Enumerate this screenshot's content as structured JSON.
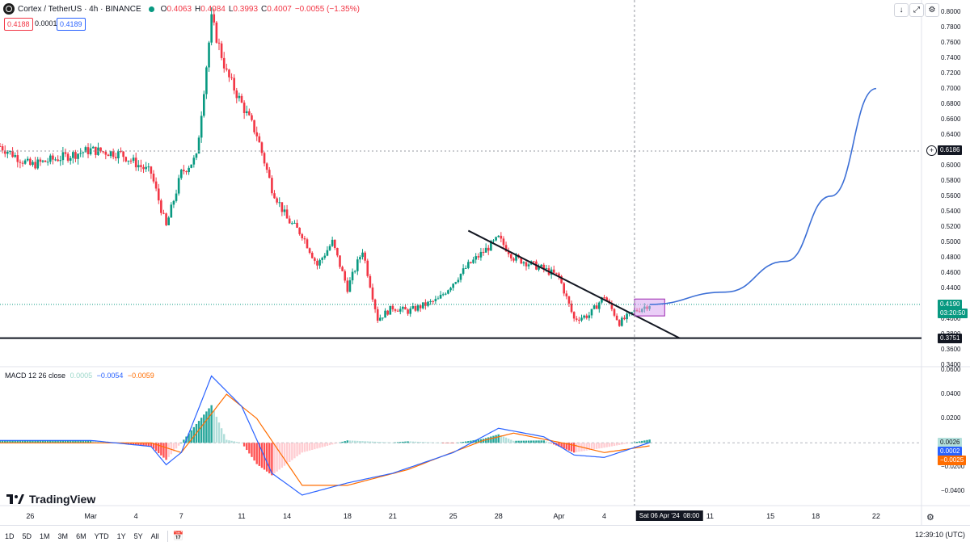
{
  "header": {
    "symbol": "Cortex / TetherUS · 4h · BINANCE",
    "ohlc": {
      "o_label": "O",
      "o": "0.4063",
      "h_label": "H",
      "h": "0.4084",
      "l_label": "L",
      "l": "0.3993",
      "c_label": "C",
      "c": "0.4007",
      "change": "−0.0055 (−1.35%)"
    },
    "sell_price": "0.4188",
    "spread": "0.0001",
    "buy_price": "0.4189"
  },
  "toolbar_icons": [
    "arrow-down-icon",
    "expand-icon",
    "settings-icon"
  ],
  "price_axis": {
    "ticks": [
      "0.8000",
      "0.7800",
      "0.7600",
      "0.7400",
      "0.7200",
      "0.7000",
      "0.6800",
      "0.6600",
      "0.6400",
      "0.6200",
      "0.6000",
      "0.5800",
      "0.5600",
      "0.5400",
      "0.5200",
      "0.5000",
      "0.4800",
      "0.4600",
      "0.4400",
      "0.4200",
      "0.4000",
      "0.3800",
      "0.3600",
      "0.3400"
    ],
    "target_label": "0.6186",
    "current_price": "0.4190",
    "countdown": "03:20:50",
    "support_label": "0.3751"
  },
  "macd": {
    "title": "MACD 12 26 close",
    "v1": "0.0005",
    "v2": "−0.0054",
    "v3": "−0.0059",
    "axis_ticks": [
      "0.0600",
      "0.0400",
      "0.0200",
      "−0.0200",
      "−0.0400"
    ],
    "tag_hist": "0.0026",
    "tag_macd": "0.0002",
    "tag_signal": "−0.0025"
  },
  "time_axis": {
    "labels": [
      "26",
      "Mar",
      "4",
      "7",
      "11",
      "14",
      "18",
      "21",
      "25",
      "28",
      "Apr",
      "4",
      "11",
      "15",
      "18",
      "22"
    ],
    "crosshair_label": "Sat 06 Apr '24",
    "crosshair_time": "08:00"
  },
  "brand": "TradingView",
  "timeframes": [
    "1D",
    "5D",
    "1M",
    "3M",
    "6M",
    "YTD",
    "1Y",
    "5Y",
    "All"
  ],
  "clock": "12:39:10 (UTC)",
  "colors": {
    "up": "#089981",
    "down": "#f23645",
    "macd_line": "#2962ff",
    "signal_line": "#ff6d00",
    "projection": "#3c6fd6",
    "zone": "#d8a6f0"
  },
  "chart_data": [
    {
      "type": "candlestick",
      "title": "Cortex / TetherUS · 4h · BINANCE",
      "x_range": [
        "2024-02-24",
        "2024-04-25"
      ],
      "ylim": [
        0.34,
        0.81
      ],
      "close_path": [
        {
          "date": "2024-02-24",
          "close": 0.625
        },
        {
          "date": "2024-02-26",
          "close": 0.6
        },
        {
          "date": "2024-02-28",
          "close": 0.61
        },
        {
          "date": "2024-03-01",
          "close": 0.62
        },
        {
          "date": "2024-03-03",
          "close": 0.615
        },
        {
          "date": "2024-03-05",
          "close": 0.59
        },
        {
          "date": "2024-03-06",
          "close": 0.52
        },
        {
          "date": "2024-03-07",
          "close": 0.59
        },
        {
          "date": "2024-03-08",
          "close": 0.61
        },
        {
          "date": "2024-03-09",
          "close": 0.79
        },
        {
          "date": "2024-03-10",
          "close": 0.72
        },
        {
          "date": "2024-03-11",
          "close": 0.68
        },
        {
          "date": "2024-03-12",
          "close": 0.64
        },
        {
          "date": "2024-03-13",
          "close": 0.57
        },
        {
          "date": "2024-03-14",
          "close": 0.53
        },
        {
          "date": "2024-03-15",
          "close": 0.51
        },
        {
          "date": "2024-03-16",
          "close": 0.47
        },
        {
          "date": "2024-03-17",
          "close": 0.5
        },
        {
          "date": "2024-03-18",
          "close": 0.44
        },
        {
          "date": "2024-03-19",
          "close": 0.49
        },
        {
          "date": "2024-03-20",
          "close": 0.4
        },
        {
          "date": "2024-03-21",
          "close": 0.415
        },
        {
          "date": "2024-03-22",
          "close": 0.41
        },
        {
          "date": "2024-03-24",
          "close": 0.425
        },
        {
          "date": "2024-03-26",
          "close": 0.47
        },
        {
          "date": "2024-03-28",
          "close": 0.505
        },
        {
          "date": "2024-03-29",
          "close": 0.48
        },
        {
          "date": "2024-03-31",
          "close": 0.465
        },
        {
          "date": "2024-04-01",
          "close": 0.455
        },
        {
          "date": "2024-04-02",
          "close": 0.4
        },
        {
          "date": "2024-04-03",
          "close": 0.405
        },
        {
          "date": "2024-04-04",
          "close": 0.43
        },
        {
          "date": "2024-04-05",
          "close": 0.395
        },
        {
          "date": "2024-04-06",
          "close": 0.41
        },
        {
          "date": "2024-04-07",
          "close": 0.419
        }
      ],
      "support_level": 0.3751,
      "target_level": 0.6186,
      "downtrend_line": [
        {
          "date": "2024-03-26",
          "price": 0.515
        },
        {
          "date": "2024-04-09",
          "price": 0.375
        }
      ],
      "projection_curve": [
        {
          "date": "2024-04-07",
          "price": 0.419
        },
        {
          "date": "2024-04-12",
          "price": 0.435
        },
        {
          "date": "2024-04-16",
          "price": 0.475
        },
        {
          "date": "2024-04-19",
          "price": 0.56
        },
        {
          "date": "2024-04-22",
          "price": 0.7
        }
      ],
      "breakout_zone": {
        "date_start": "2024-04-06",
        "date_end": "2024-04-08",
        "price_low": 0.404,
        "price_high": 0.426
      }
    },
    {
      "type": "macd",
      "title": "MACD 12 26 close",
      "ylim": [
        -0.049,
        0.062
      ],
      "macd_line": [
        {
          "date": "2024-02-24",
          "value": 0.002
        },
        {
          "date": "2024-03-01",
          "value": 0.002
        },
        {
          "date": "2024-03-05",
          "value": -0.003
        },
        {
          "date": "2024-03-06",
          "value": -0.018
        },
        {
          "date": "2024-03-07",
          "value": -0.008
        },
        {
          "date": "2024-03-09",
          "value": 0.055
        },
        {
          "date": "2024-03-11",
          "value": 0.03
        },
        {
          "date": "2024-03-13",
          "value": -0.025
        },
        {
          "date": "2024-03-15",
          "value": -0.043
        },
        {
          "date": "2024-03-18",
          "value": -0.033
        },
        {
          "date": "2024-03-21",
          "value": -0.025
        },
        {
          "date": "2024-03-25",
          "value": -0.008
        },
        {
          "date": "2024-03-28",
          "value": 0.012
        },
        {
          "date": "2024-03-31",
          "value": 0.005
        },
        {
          "date": "2024-04-02",
          "value": -0.01
        },
        {
          "date": "2024-04-04",
          "value": -0.012
        },
        {
          "date": "2024-04-07",
          "value": 0.0002
        }
      ],
      "signal_line": [
        {
          "date": "2024-02-24",
          "value": 0.0
        },
        {
          "date": "2024-03-05",
          "value": 0.0
        },
        {
          "date": "2024-03-07",
          "value": -0.008
        },
        {
          "date": "2024-03-10",
          "value": 0.04
        },
        {
          "date": "2024-03-12",
          "value": 0.02
        },
        {
          "date": "2024-03-15",
          "value": -0.035
        },
        {
          "date": "2024-03-18",
          "value": -0.035
        },
        {
          "date": "2024-03-22",
          "value": -0.022
        },
        {
          "date": "2024-03-27",
          "value": 0.002
        },
        {
          "date": "2024-03-29",
          "value": 0.008
        },
        {
          "date": "2024-04-02",
          "value": -0.002
        },
        {
          "date": "2024-04-04",
          "value": -0.008
        },
        {
          "date": "2024-04-07",
          "value": -0.0025
        }
      ]
    }
  ]
}
